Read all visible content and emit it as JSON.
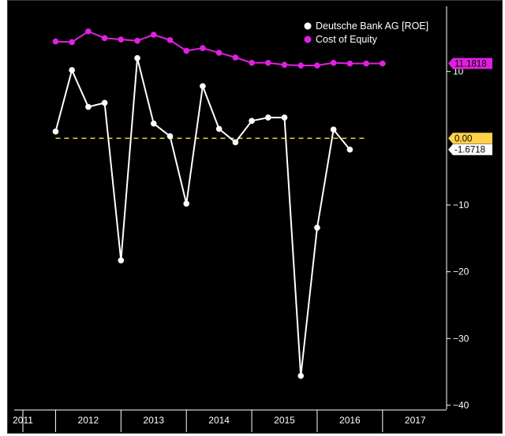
{
  "chart_data": {
    "type": "line",
    "y_axis_position": "right",
    "ylim": [
      -40,
      20
    ],
    "yticks": [
      -40,
      -30,
      -20,
      -10,
      10
    ],
    "x_range": [
      2011.0,
      2017.6
    ],
    "x_tick_labels": [
      "2011",
      "2012",
      "2013",
      "2014",
      "2015",
      "2016",
      "2017"
    ],
    "x_tick_positions": [
      2011.0,
      2012.0,
      2013.0,
      2014.0,
      2015.0,
      2016.0,
      2017.0
    ],
    "legend": {
      "placement": "top-right"
    },
    "reference_line": {
      "value": 0.0,
      "label": "0.00",
      "color": "#ffd24a"
    },
    "series": [
      {
        "name": "Deutsche Bank AG [ROE]",
        "color": "#ffffff",
        "last_value_label": "-1.6718",
        "x": [
          2011.5,
          2011.75,
          2012.0,
          2012.25,
          2012.5,
          2012.75,
          2013.0,
          2013.25,
          2013.5,
          2013.75,
          2014.0,
          2014.25,
          2014.5,
          2014.75,
          2015.0,
          2015.25,
          2015.5,
          2015.75,
          2016.0,
          2016.25
        ],
        "y": [
          1.0,
          10.2,
          4.7,
          5.3,
          -18.3,
          12.0,
          2.2,
          0.3,
          -9.8,
          7.8,
          1.4,
          -0.6,
          2.6,
          3.1,
          3.1,
          -35.6,
          -13.4,
          1.3,
          -1.7,
          null
        ]
      },
      {
        "name": "Cost of Equity",
        "color": "#e020e0",
        "last_value_label": "11.1818",
        "x": [
          2011.5,
          2011.75,
          2012.0,
          2012.25,
          2012.5,
          2012.75,
          2013.0,
          2013.25,
          2013.5,
          2013.75,
          2014.0,
          2014.25,
          2014.5,
          2014.75,
          2015.0,
          2015.25,
          2015.5,
          2015.75,
          2016.0,
          2016.25,
          2016.5
        ],
        "y": [
          14.5,
          14.4,
          16.0,
          15.0,
          14.8,
          14.6,
          15.5,
          14.7,
          13.1,
          13.5,
          12.8,
          12.1,
          11.3,
          11.3,
          11.0,
          10.9,
          10.9,
          11.3,
          11.2,
          11.2,
          11.2
        ]
      }
    ]
  }
}
